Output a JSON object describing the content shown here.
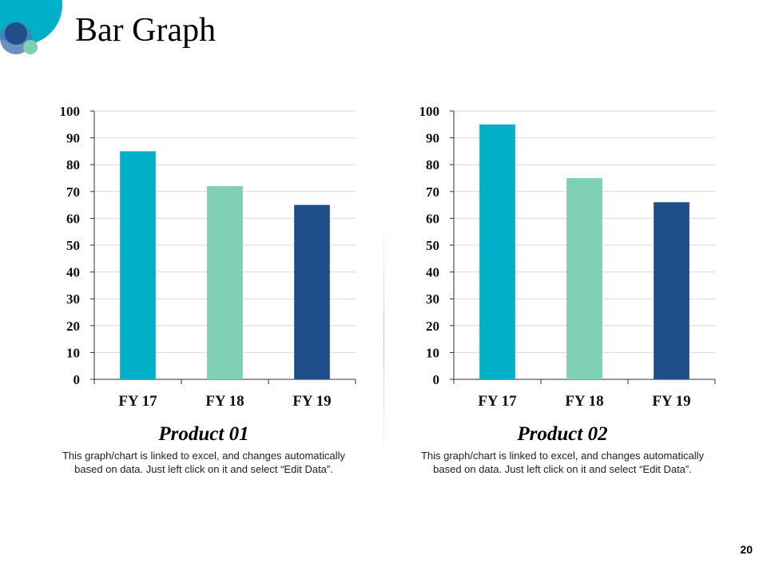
{
  "title": "Bar Graph",
  "page_number": "20",
  "colors": {
    "bar1": "#02AFC8",
    "bar2": "#7FCFB4",
    "bar3": "#1F4E89",
    "deco_dark": "#1F4E89",
    "deco_light": "#7FCFB4",
    "deco_accent": "#02AFC8"
  },
  "captions": [
    {
      "heading": "Product 01",
      "body": "This graph/chart is linked to excel, and changes automatically based on data. Just left click on it and select “Edit Data”."
    },
    {
      "heading": "Product 02",
      "body": "This graph/chart is linked to excel, and changes automatically based on data. Just left click on it and select “Edit Data”."
    }
  ],
  "chart_data": [
    {
      "type": "bar",
      "title": "Product 01",
      "categories": [
        "FY 17",
        "FY 18",
        "FY 19"
      ],
      "values": [
        85,
        72,
        65
      ],
      "ylim": [
        0,
        100
      ],
      "yticks": [
        0,
        10,
        20,
        30,
        40,
        50,
        60,
        70,
        80,
        90,
        100
      ],
      "ytick_labels": [
        "0",
        "10",
        "20",
        "30",
        "40",
        "50",
        "60",
        "70",
        "80",
        "90",
        "100"
      ],
      "grid": true,
      "xlabel": "",
      "ylabel": ""
    },
    {
      "type": "bar",
      "title": "Product 02",
      "categories": [
        "FY 17",
        "FY 18",
        "FY 19"
      ],
      "values": [
        95,
        75,
        66
      ],
      "ylim": [
        0,
        100
      ],
      "yticks": [
        0,
        10,
        20,
        30,
        40,
        50,
        60,
        70,
        80,
        90,
        100
      ],
      "ytick_labels": [
        "0",
        "10",
        "20",
        "30",
        "40",
        "50",
        "60",
        "70",
        "80",
        "90",
        "100"
      ],
      "grid": true,
      "xlabel": "",
      "ylabel": ""
    }
  ]
}
